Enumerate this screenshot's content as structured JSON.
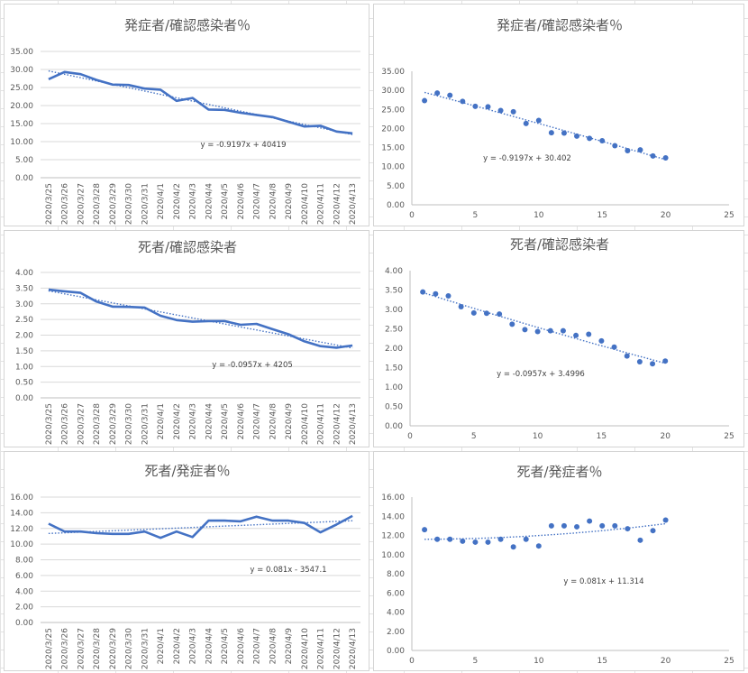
{
  "colors": {
    "series": "#4472c4",
    "trend": "#4472c4",
    "grid": "#d9d9d9",
    "axis": "#bfbfbf",
    "text": "#595959"
  },
  "chart_data": [
    {
      "type": "line",
      "title": "発症者/確認感染者％",
      "categories": [
        "2020/3/25",
        "2020/3/26",
        "2020/3/27",
        "2020/3/28",
        "2020/3/29",
        "2020/3/30",
        "2020/3/31",
        "2020/4/1",
        "2020/4/2",
        "2020/4/3",
        "2020/4/4",
        "2020/4/5",
        "2020/4/6",
        "2020/4/7",
        "2020/4/8",
        "2020/4/9",
        "2020/4/10",
        "2020/4/11",
        "2020/4/12",
        "2020/4/13"
      ],
      "values": [
        27.3,
        29.3,
        28.7,
        27.1,
        25.8,
        25.7,
        24.7,
        24.4,
        21.3,
        22.1,
        18.9,
        18.8,
        18.0,
        17.4,
        16.8,
        15.5,
        14.2,
        14.4,
        12.8,
        12.3
      ],
      "ylim": [
        0,
        35
      ],
      "ystep": 5,
      "ytick_labels": [
        "0.00",
        "5.00",
        "10.00",
        "15.00",
        "20.00",
        "25.00",
        "30.00",
        "35.00"
      ],
      "gridlines": true,
      "trendline": "linear",
      "equation": "y = -0.9197x + 40419"
    },
    {
      "type": "scatter",
      "title": "発症者/確認感染者％",
      "x": [
        1,
        2,
        3,
        4,
        5,
        6,
        7,
        8,
        9,
        10,
        11,
        12,
        13,
        14,
        15,
        16,
        17,
        18,
        19,
        20
      ],
      "y": [
        27.3,
        29.3,
        28.7,
        27.1,
        25.8,
        25.7,
        24.7,
        24.4,
        21.3,
        22.1,
        18.9,
        18.8,
        18.0,
        17.4,
        16.8,
        15.5,
        14.2,
        14.4,
        12.8,
        12.3
      ],
      "xlim": [
        0,
        25
      ],
      "xstep": 5,
      "xtick_labels": [
        "0",
        "5",
        "10",
        "15",
        "20",
        "25"
      ],
      "ylim": [
        0,
        35
      ],
      "ystep": 5,
      "ytick_labels": [
        "0.00",
        "5.00",
        "10.00",
        "15.00",
        "20.00",
        "25.00",
        "30.00",
        "35.00"
      ],
      "gridlines": false,
      "trendline": "polynomial",
      "equation": "y = -0.9197x + 30.402"
    },
    {
      "type": "line",
      "title": "死者/確認感染者",
      "categories": [
        "2020/3/25",
        "2020/3/26",
        "2020/3/27",
        "2020/3/28",
        "2020/3/29",
        "2020/3/30",
        "2020/3/31",
        "2020/4/1",
        "2020/4/2",
        "2020/4/3",
        "2020/4/4",
        "2020/4/5",
        "2020/4/6",
        "2020/4/7",
        "2020/4/8",
        "2020/4/9",
        "2020/4/10",
        "2020/4/11",
        "2020/4/12",
        "2020/4/13"
      ],
      "values": [
        3.45,
        3.4,
        3.35,
        3.07,
        2.91,
        2.9,
        2.88,
        2.62,
        2.48,
        2.43,
        2.45,
        2.45,
        2.33,
        2.36,
        2.19,
        2.03,
        1.8,
        1.65,
        1.6,
        1.67
      ],
      "ylim": [
        0,
        4
      ],
      "ystep": 0.5,
      "ytick_labels": [
        "0.00",
        "0.50",
        "1.00",
        "1.50",
        "2.00",
        "2.50",
        "3.00",
        "3.50",
        "4.00"
      ],
      "gridlines": true,
      "trendline": "linear",
      "equation": "y = -0.0957x + 4205"
    },
    {
      "type": "scatter",
      "title": "死者/確認感染者",
      "x": [
        1,
        2,
        3,
        4,
        5,
        6,
        7,
        8,
        9,
        10,
        11,
        12,
        13,
        14,
        15,
        16,
        17,
        18,
        19,
        20
      ],
      "y": [
        3.45,
        3.4,
        3.35,
        3.07,
        2.91,
        2.9,
        2.88,
        2.62,
        2.48,
        2.43,
        2.45,
        2.45,
        2.33,
        2.36,
        2.19,
        2.03,
        1.8,
        1.65,
        1.6,
        1.67
      ],
      "xlim": [
        0,
        25
      ],
      "xstep": 5,
      "xtick_labels": [
        "0",
        "5",
        "10",
        "15",
        "20",
        "25"
      ],
      "ylim": [
        0,
        4
      ],
      "ystep": 0.5,
      "ytick_labels": [
        "0.00",
        "0.50",
        "1.00",
        "1.50",
        "2.00",
        "2.50",
        "3.00",
        "3.50",
        "4.00"
      ],
      "gridlines": false,
      "trendline": "polynomial",
      "equation": "y = -0.0957x + 3.4996"
    },
    {
      "type": "line",
      "title": "死者/発症者％",
      "categories": [
        "2020/3/25",
        "2020/3/26",
        "2020/3/27",
        "2020/3/28",
        "2020/3/29",
        "2020/3/30",
        "2020/3/31",
        "2020/4/1",
        "2020/4/2",
        "2020/4/3",
        "2020/4/4",
        "2020/4/5",
        "2020/4/6",
        "2020/4/7",
        "2020/4/8",
        "2020/4/9",
        "2020/4/10",
        "2020/4/11",
        "2020/4/12",
        "2020/4/13"
      ],
      "values": [
        12.6,
        11.6,
        11.6,
        11.4,
        11.3,
        11.3,
        11.6,
        10.8,
        11.6,
        10.9,
        13.0,
        13.0,
        12.9,
        13.5,
        13.0,
        13.0,
        12.7,
        11.5,
        12.5,
        13.6
      ],
      "ylim": [
        0,
        16
      ],
      "ystep": 2,
      "ytick_labels": [
        "0.00",
        "2.00",
        "4.00",
        "6.00",
        "8.00",
        "10.00",
        "12.00",
        "14.00",
        "16.00"
      ],
      "gridlines": true,
      "trendline": "linear",
      "equation": "y = 0.081x - 3547.1"
    },
    {
      "type": "scatter",
      "title": "死者/発症者％",
      "x": [
        1,
        2,
        3,
        4,
        5,
        6,
        7,
        8,
        9,
        10,
        11,
        12,
        13,
        14,
        15,
        16,
        17,
        18,
        19,
        20
      ],
      "y": [
        12.6,
        11.6,
        11.6,
        11.4,
        11.3,
        11.3,
        11.6,
        10.8,
        11.6,
        10.9,
        13.0,
        13.0,
        12.9,
        13.5,
        13.0,
        13.0,
        12.7,
        11.5,
        12.5,
        13.6
      ],
      "xlim": [
        0,
        25
      ],
      "xstep": 5,
      "xtick_labels": [
        "0",
        "5",
        "10",
        "15",
        "20",
        "25"
      ],
      "ylim": [
        0,
        16
      ],
      "ystep": 2,
      "ytick_labels": [
        "0.00",
        "2.00",
        "4.00",
        "6.00",
        "8.00",
        "10.00",
        "12.00",
        "14.00",
        "16.00"
      ],
      "gridlines": false,
      "trendline": "polynomial",
      "equation": "y = 0.081x + 11.314"
    }
  ]
}
